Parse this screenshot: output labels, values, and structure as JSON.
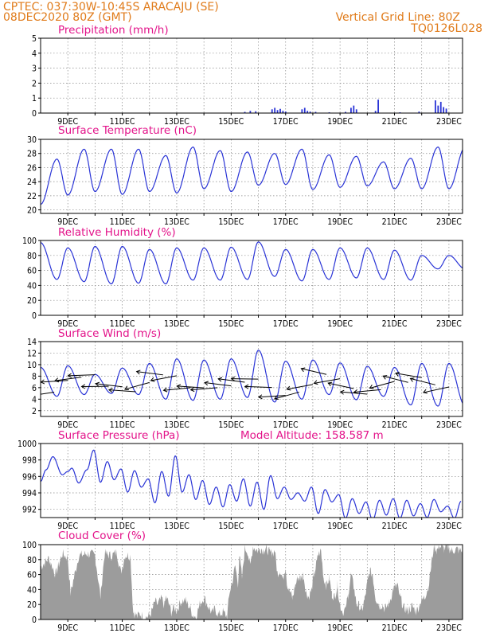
{
  "header": {
    "line1_left": "CPTEC:   037:30W-10:45S   ARACAJU (SE)",
    "line2_left": "08DEC2020 80Z (GMT)",
    "line1_right": "Vertical Grid Line: 80Z",
    "line2_right": "TQ0126L028"
  },
  "colors": {
    "header": "#e07b1a",
    "title": "#e3138a",
    "series": "#2a34d6",
    "cloud": "#9c9c9c",
    "grid": "#888888"
  },
  "chart_data": [
    {
      "type": "bar",
      "title": "Precipitation (mm/h)",
      "x_tick_labels": [
        "9DEC",
        "11DEC",
        "13DEC",
        "15DEC",
        "17DEC",
        "19DEC",
        "21DEC",
        "23DEC"
      ],
      "ylim": [
        0,
        5
      ],
      "yticks": [
        0,
        1,
        2,
        3,
        4,
        5
      ],
      "grid": true,
      "x_unit": "day of December 2020",
      "points": [
        [
          15.5,
          0.08
        ],
        [
          15.7,
          0.15
        ],
        [
          15.9,
          0.12
        ],
        [
          16.5,
          0.25
        ],
        [
          16.6,
          0.35
        ],
        [
          16.7,
          0.2
        ],
        [
          16.8,
          0.28
        ],
        [
          16.9,
          0.15
        ],
        [
          17.0,
          0.1
        ],
        [
          17.6,
          0.25
        ],
        [
          17.7,
          0.35
        ],
        [
          17.8,
          0.15
        ],
        [
          17.9,
          0.1
        ],
        [
          18.1,
          0.08
        ],
        [
          18.6,
          0.05
        ],
        [
          19.2,
          0.08
        ],
        [
          19.4,
          0.35
        ],
        [
          19.5,
          0.5
        ],
        [
          19.6,
          0.25
        ],
        [
          20.3,
          0.15
        ],
        [
          20.4,
          0.9
        ],
        [
          21.2,
          0.05
        ],
        [
          21.9,
          0.1
        ],
        [
          22.5,
          0.85
        ],
        [
          22.6,
          0.5
        ],
        [
          22.7,
          0.75
        ],
        [
          22.8,
          0.4
        ],
        [
          22.9,
          0.3
        ]
      ]
    },
    {
      "type": "line",
      "title": "Surface Temperature (nC)",
      "x_tick_labels": [
        "9DEC",
        "11DEC",
        "13DEC",
        "15DEC",
        "17DEC",
        "19DEC",
        "21DEC",
        "23DEC"
      ],
      "ylim": [
        19.5,
        30
      ],
      "yticks": [
        20,
        22,
        24,
        26,
        28,
        30
      ],
      "grid": true,
      "daily_max": [
        27.2,
        28.6,
        28.6,
        28.6,
        27.7,
        28.9,
        28.4,
        28.2,
        28.0,
        28.6,
        27.8,
        27.6,
        26.8,
        27.3,
        28.9
      ],
      "daily_min": [
        20.8,
        22.1,
        22.6,
        22.2,
        22.6,
        22.4,
        23.0,
        22.6,
        23.5,
        23.6,
        22.9,
        23.2,
        23.4,
        23.0,
        23.0
      ]
    },
    {
      "type": "line",
      "title": "Relative Humidity (%)",
      "x_tick_labels": [
        "9DEC",
        "11DEC",
        "13DEC",
        "15DEC",
        "17DEC",
        "19DEC",
        "21DEC",
        "23DEC"
      ],
      "ylim": [
        0,
        100
      ],
      "yticks": [
        0,
        20,
        40,
        60,
        80,
        100
      ],
      "grid": true,
      "daily_max": [
        97,
        90,
        92,
        92,
        88,
        90,
        90,
        91,
        98,
        88,
        88,
        90,
        90,
        87,
        80
      ],
      "daily_min": [
        48,
        45,
        42,
        43,
        42,
        47,
        47,
        48,
        52,
        46,
        48,
        50,
        48,
        47,
        62
      ]
    },
    {
      "type": "line",
      "title": "Surface Wind (m/s)",
      "x_tick_labels": [
        "9DEC",
        "11DEC",
        "13DEC",
        "15DEC",
        "17DEC",
        "19DEC",
        "21DEC",
        "23DEC"
      ],
      "ylim": [
        1,
        14
      ],
      "yticks": [
        2,
        4,
        6,
        8,
        10,
        12,
        14
      ],
      "grid": true,
      "has_wind_direction_arrows": true,
      "daily_max": [
        9.5,
        9.8,
        8.3,
        9.4,
        10.2,
        11.0,
        10.8,
        11.0,
        12.5,
        10.6,
        10.8,
        10.3,
        9.7,
        9.5,
        10.2
      ],
      "daily_min": [
        4.5,
        4.8,
        5.0,
        4.8,
        4.0,
        3.8,
        4.0,
        4.3,
        3.5,
        4.0,
        4.8,
        3.9,
        4.5,
        3.0,
        2.8
      ]
    },
    {
      "type": "line",
      "title": "Surface Pressure (hPa)",
      "annotation": "Model Altitude: 158.587 m",
      "x_tick_labels": [
        "9DEC",
        "11DEC",
        "13DEC",
        "15DEC",
        "17DEC",
        "19DEC",
        "21DEC",
        "23DEC"
      ],
      "ylim": [
        991,
        1000
      ],
      "yticks": [
        992,
        994,
        996,
        998,
        1000
      ],
      "grid": true,
      "anchors": [
        [
          8.0,
          995.4
        ],
        [
          8.2,
          996.8
        ],
        [
          8.45,
          998.4
        ],
        [
          8.8,
          996.2
        ],
        [
          9.0,
          996.6
        ],
        [
          9.15,
          997.0
        ],
        [
          9.4,
          995.2
        ],
        [
          9.7,
          996.8
        ],
        [
          9.95,
          999.2
        ],
        [
          10.2,
          995.3
        ],
        [
          10.45,
          997.8
        ],
        [
          10.7,
          995.6
        ],
        [
          10.95,
          996.9
        ],
        [
          11.2,
          994.1
        ],
        [
          11.45,
          996.7
        ],
        [
          11.7,
          994.7
        ],
        [
          11.95,
          995.7
        ],
        [
          12.2,
          992.8
        ],
        [
          12.45,
          996.6
        ],
        [
          12.7,
          993.6
        ],
        [
          12.95,
          998.5
        ],
        [
          13.2,
          994.1
        ],
        [
          13.45,
          996.2
        ],
        [
          13.7,
          993.2
        ],
        [
          13.95,
          995.5
        ],
        [
          14.2,
          992.6
        ],
        [
          14.45,
          994.7
        ],
        [
          14.7,
          992.3
        ],
        [
          14.95,
          995.0
        ],
        [
          15.2,
          993.0
        ],
        [
          15.45,
          995.7
        ],
        [
          15.7,
          992.4
        ],
        [
          15.95,
          995.3
        ],
        [
          16.2,
          992.0
        ],
        [
          16.45,
          996.1
        ],
        [
          16.7,
          993.3
        ],
        [
          16.95,
          994.7
        ],
        [
          17.2,
          993.2
        ],
        [
          17.45,
          994.0
        ],
        [
          17.7,
          993.0
        ],
        [
          17.95,
          994.7
        ],
        [
          18.2,
          991.5
        ],
        [
          18.45,
          994.4
        ],
        [
          18.7,
          992.9
        ],
        [
          18.95,
          993.8
        ],
        [
          19.2,
          990.9
        ],
        [
          19.45,
          993.3
        ],
        [
          19.7,
          991.5
        ],
        [
          19.95,
          992.9
        ],
        [
          20.2,
          990.7
        ],
        [
          20.45,
          993.1
        ],
        [
          20.7,
          991.3
        ],
        [
          20.95,
          993.3
        ],
        [
          21.2,
          990.9
        ],
        [
          21.45,
          993.1
        ],
        [
          21.7,
          991.2
        ],
        [
          21.95,
          992.7
        ],
        [
          22.2,
          991.0
        ],
        [
          22.45,
          993.2
        ],
        [
          22.7,
          991.7
        ],
        [
          22.95,
          992.4
        ],
        [
          23.2,
          990.9
        ],
        [
          23.45,
          993.0
        ]
      ]
    },
    {
      "type": "area",
      "title": "Cloud Cover (%)",
      "x_tick_labels": [
        "9DEC",
        "11DEC",
        "13DEC",
        "15DEC",
        "17DEC",
        "19DEC",
        "21DEC",
        "23DEC"
      ],
      "ylim": [
        0,
        100
      ],
      "yticks": [
        0,
        20,
        40,
        60,
        80,
        100
      ],
      "grid": true,
      "segments": [
        [
          8.0,
          70
        ],
        [
          8.3,
          82
        ],
        [
          8.55,
          60
        ],
        [
          8.8,
          88
        ],
        [
          9.0,
          82
        ],
        [
          9.1,
          35
        ],
        [
          9.25,
          60
        ],
        [
          9.4,
          85
        ],
        [
          9.7,
          88
        ],
        [
          10.0,
          86
        ],
        [
          10.2,
          30
        ],
        [
          10.35,
          88
        ],
        [
          10.6,
          85
        ],
        [
          10.8,
          90
        ],
        [
          10.95,
          62
        ],
        [
          11.1,
          86
        ],
        [
          11.3,
          85
        ],
        [
          11.4,
          10
        ],
        [
          11.55,
          4
        ],
        [
          11.65,
          8
        ],
        [
          11.8,
          2
        ],
        [
          12.0,
          5
        ],
        [
          12.1,
          12
        ],
        [
          12.2,
          24
        ],
        [
          12.3,
          20
        ],
        [
          12.45,
          28
        ],
        [
          12.55,
          18
        ],
        [
          12.6,
          30
        ],
        [
          12.7,
          22
        ],
        [
          12.8,
          10
        ],
        [
          12.9,
          16
        ],
        [
          13.0,
          12
        ],
        [
          13.15,
          24
        ],
        [
          13.3,
          26
        ],
        [
          13.45,
          18
        ],
        [
          13.6,
          6
        ],
        [
          13.7,
          4
        ],
        [
          13.85,
          20
        ],
        [
          14.0,
          30
        ],
        [
          14.15,
          18
        ],
        [
          14.3,
          8
        ],
        [
          14.4,
          14
        ],
        [
          14.55,
          6
        ],
        [
          14.7,
          10
        ],
        [
          14.85,
          4
        ],
        [
          14.95,
          38
        ],
        [
          15.05,
          52
        ],
        [
          15.15,
          72
        ],
        [
          15.25,
          48
        ],
        [
          15.3,
          86
        ],
        [
          15.4,
          55
        ],
        [
          15.5,
          95
        ],
        [
          15.6,
          92
        ],
        [
          15.7,
          70
        ],
        [
          15.8,
          98
        ],
        [
          15.9,
          94
        ],
        [
          16.0,
          92
        ],
        [
          16.1,
          95
        ],
        [
          16.2,
          92
        ],
        [
          16.3,
          95
        ],
        [
          16.4,
          90
        ],
        [
          16.5,
          88
        ],
        [
          16.6,
          92
        ],
        [
          16.7,
          62
        ],
        [
          16.8,
          66
        ],
        [
          16.9,
          54
        ],
        [
          17.0,
          72
        ],
        [
          17.05,
          48
        ],
        [
          17.15,
          38
        ],
        [
          17.25,
          28
        ],
        [
          17.35,
          45
        ],
        [
          17.45,
          56
        ],
        [
          17.55,
          55
        ],
        [
          17.65,
          60
        ],
        [
          17.75,
          38
        ],
        [
          17.85,
          30
        ],
        [
          17.95,
          40
        ],
        [
          18.05,
          60
        ],
        [
          18.2,
          86
        ],
        [
          18.3,
          92
        ],
        [
          18.4,
          55
        ],
        [
          18.5,
          46
        ],
        [
          18.6,
          55
        ],
        [
          18.7,
          34
        ],
        [
          18.8,
          30
        ],
        [
          18.9,
          46
        ],
        [
          19.0,
          20
        ],
        [
          19.1,
          10
        ],
        [
          19.2,
          14
        ],
        [
          19.3,
          32
        ],
        [
          19.4,
          60
        ],
        [
          19.5,
          44
        ],
        [
          19.6,
          22
        ],
        [
          19.7,
          18
        ],
        [
          19.8,
          12
        ],
        [
          19.9,
          26
        ],
        [
          20.0,
          48
        ],
        [
          20.1,
          64
        ],
        [
          20.2,
          60
        ],
        [
          20.3,
          30
        ],
        [
          20.45,
          18
        ],
        [
          20.55,
          20
        ],
        [
          20.65,
          14
        ],
        [
          20.8,
          22
        ],
        [
          20.95,
          40
        ],
        [
          21.1,
          46
        ],
        [
          21.2,
          30
        ],
        [
          21.35,
          16
        ],
        [
          21.5,
          12
        ],
        [
          21.65,
          18
        ],
        [
          21.8,
          10
        ],
        [
          21.95,
          22
        ],
        [
          22.1,
          30
        ],
        [
          22.25,
          44
        ],
        [
          22.35,
          72
        ],
        [
          22.45,
          100
        ],
        [
          22.55,
          92
        ],
        [
          22.65,
          98
        ],
        [
          22.8,
          94
        ],
        [
          22.95,
          98
        ],
        [
          23.1,
          92
        ],
        [
          23.3,
          94
        ],
        [
          23.5,
          90
        ]
      ]
    }
  ]
}
